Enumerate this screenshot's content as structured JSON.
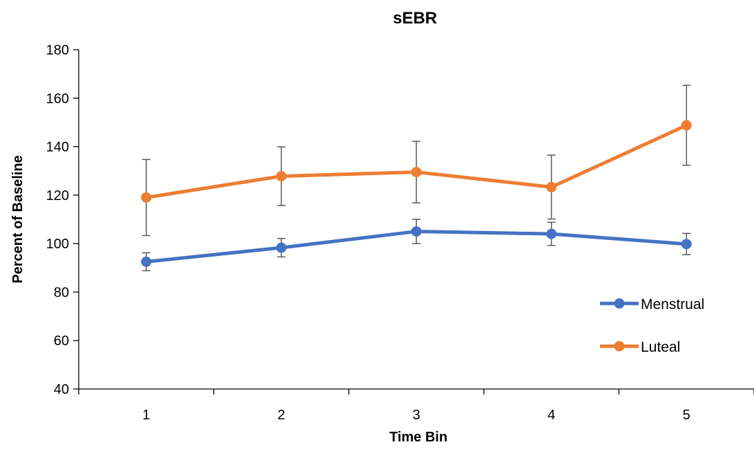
{
  "chart_data": {
    "type": "line",
    "title": "sEBR",
    "xlabel": "Time Bin",
    "ylabel": "Percent of Baseline",
    "categories": [
      "1",
      "2",
      "3",
      "4",
      "5"
    ],
    "ylim": [
      40,
      180
    ],
    "yticks": [
      40,
      60,
      80,
      100,
      120,
      140,
      160,
      180
    ],
    "grid": false,
    "legend_position": "bottom-right",
    "series": [
      {
        "name": "Menstrual",
        "color": "#4472C4",
        "values": [
          92.5,
          98.3,
          105.0,
          104.0,
          99.8
        ],
        "error": [
          3.7,
          3.8,
          5.0,
          4.8,
          4.4
        ]
      },
      {
        "name": "Luteal",
        "color": "#ED7D31",
        "values": [
          119.0,
          127.8,
          129.5,
          123.3,
          148.8
        ],
        "error": [
          15.7,
          12.1,
          12.7,
          13.2,
          16.5
        ]
      }
    ],
    "error_bar_color": "#595959"
  }
}
